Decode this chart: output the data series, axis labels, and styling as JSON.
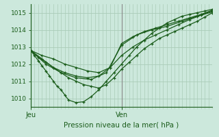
{
  "title": "Pression niveau de la mer( hPa )",
  "bg_color": "#cce8dc",
  "grid_color": "#aaccb8",
  "line_color": "#1a5c1a",
  "vline_color": "#557755",
  "vline2_color": "#888888",
  "ylim": [
    1009.5,
    1015.5
  ],
  "yticks": [
    1010,
    1011,
    1012,
    1013,
    1014,
    1015
  ],
  "xlim": [
    0,
    48
  ],
  "x_jeu": 0,
  "x_ven": 24,
  "series": [
    {
      "x": [
        0,
        1,
        2,
        3,
        4,
        5,
        6,
        7,
        8,
        9,
        10,
        12,
        14,
        16,
        18,
        20,
        22,
        24,
        26,
        28,
        30,
        32,
        34,
        36,
        38,
        40,
        42,
        44,
        46,
        48
      ],
      "y": [
        1012.8,
        1012.5,
        1012.2,
        1011.9,
        1011.6,
        1011.3,
        1011.0,
        1010.7,
        1010.5,
        1010.2,
        1009.9,
        1009.75,
        1009.8,
        1010.1,
        1010.5,
        1011.0,
        1011.5,
        1012.0,
        1012.5,
        1013.0,
        1013.4,
        1013.8,
        1014.1,
        1014.4,
        1014.6,
        1014.8,
        1014.9,
        1015.0,
        1015.1,
        1015.2
      ]
    },
    {
      "x": [
        0,
        3,
        6,
        9,
        12,
        15,
        18,
        21,
        24,
        27,
        30,
        33,
        36,
        39,
        42,
        45,
        48
      ],
      "y": [
        1012.8,
        1012.3,
        1011.8,
        1011.5,
        1011.3,
        1011.2,
        1011.3,
        1011.8,
        1012.5,
        1013.0,
        1013.4,
        1013.7,
        1014.0,
        1014.3,
        1014.6,
        1014.85,
        1015.05
      ]
    },
    {
      "x": [
        0,
        4,
        8,
        12,
        16,
        20,
        24,
        28,
        32,
        36,
        40,
        44,
        48
      ],
      "y": [
        1012.8,
        1012.0,
        1011.5,
        1011.2,
        1011.1,
        1011.5,
        1013.1,
        1013.7,
        1014.0,
        1014.2,
        1014.5,
        1014.8,
        1015.1
      ]
    },
    {
      "x": [
        0,
        2,
        4,
        6,
        8,
        10,
        12,
        14,
        16,
        18,
        20,
        22,
        24,
        26,
        28,
        30,
        32,
        34,
        36,
        38,
        40,
        42,
        44,
        46,
        48
      ],
      "y": [
        1012.8,
        1012.4,
        1012.1,
        1011.8,
        1011.5,
        1011.2,
        1011.0,
        1010.8,
        1010.7,
        1010.6,
        1010.8,
        1011.2,
        1011.7,
        1012.1,
        1012.5,
        1012.9,
        1013.2,
        1013.5,
        1013.7,
        1013.9,
        1014.1,
        1014.3,
        1014.5,
        1014.75,
        1015.0
      ]
    },
    {
      "x": [
        0,
        3,
        6,
        9,
        12,
        15,
        18,
        21,
        24,
        27,
        30,
        33,
        36,
        39,
        42,
        45,
        48
      ],
      "y": [
        1012.8,
        1012.5,
        1012.3,
        1012.0,
        1011.8,
        1011.6,
        1011.5,
        1011.8,
        1013.2,
        1013.6,
        1013.9,
        1014.1,
        1014.3,
        1014.5,
        1014.7,
        1014.9,
        1015.15
      ]
    }
  ]
}
